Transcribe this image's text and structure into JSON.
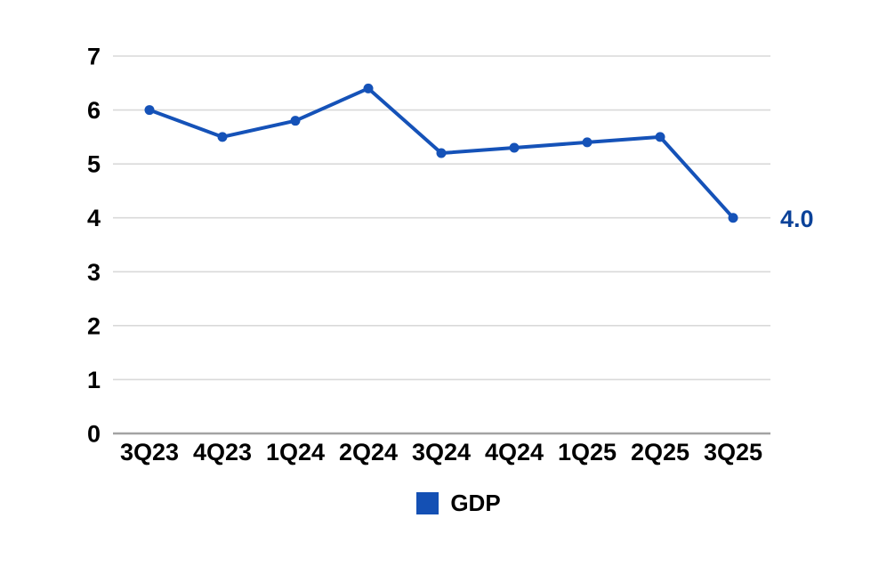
{
  "chart_data": {
    "type": "line",
    "title": "",
    "categories": [
      "3Q23",
      "4Q23",
      "1Q24",
      "2Q24",
      "3Q24",
      "4Q24",
      "1Q25",
      "2Q25",
      "3Q25"
    ],
    "series": [
      {
        "name": "GDP",
        "values": [
          6.0,
          5.5,
          5.8,
          6.4,
          5.2,
          5.3,
          5.4,
          5.5,
          4.0
        ]
      }
    ],
    "ylim": [
      0,
      7
    ],
    "yticks": [
      0,
      1,
      2,
      3,
      4,
      5,
      6,
      7
    ],
    "grid": "horizontal-only",
    "legend_position": "bottom-center",
    "end_label": "4.0"
  },
  "colors": {
    "line": "#1552b8",
    "point": "#1552b8",
    "end_label": "#0b4299",
    "legend_square": "#1450b4",
    "gridline": "#d9d9d9",
    "zero_axis": "#a3a3a3",
    "label_text": "#000000",
    "background": "#ffffff"
  }
}
